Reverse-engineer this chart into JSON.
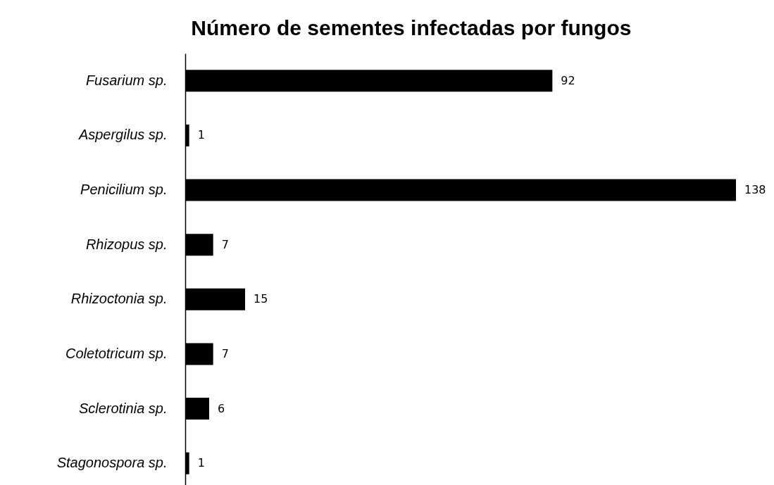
{
  "chart_data": {
    "type": "bar",
    "title": "Número de sementes infectadas por fungos",
    "orientation": "horizontal",
    "categories": [
      "Fusarium sp.",
      "Aspergilus sp.",
      "Penicilium sp.",
      "Rhizopus sp.",
      "Rhizoctonia sp.",
      "Coletotricum sp.",
      "Sclerotinia sp.",
      "Stagonospora sp."
    ],
    "values": [
      92,
      1,
      138,
      7,
      15,
      7,
      6,
      1
    ],
    "color": "#000000",
    "data_labels": true,
    "tick_labels": "y"
  }
}
